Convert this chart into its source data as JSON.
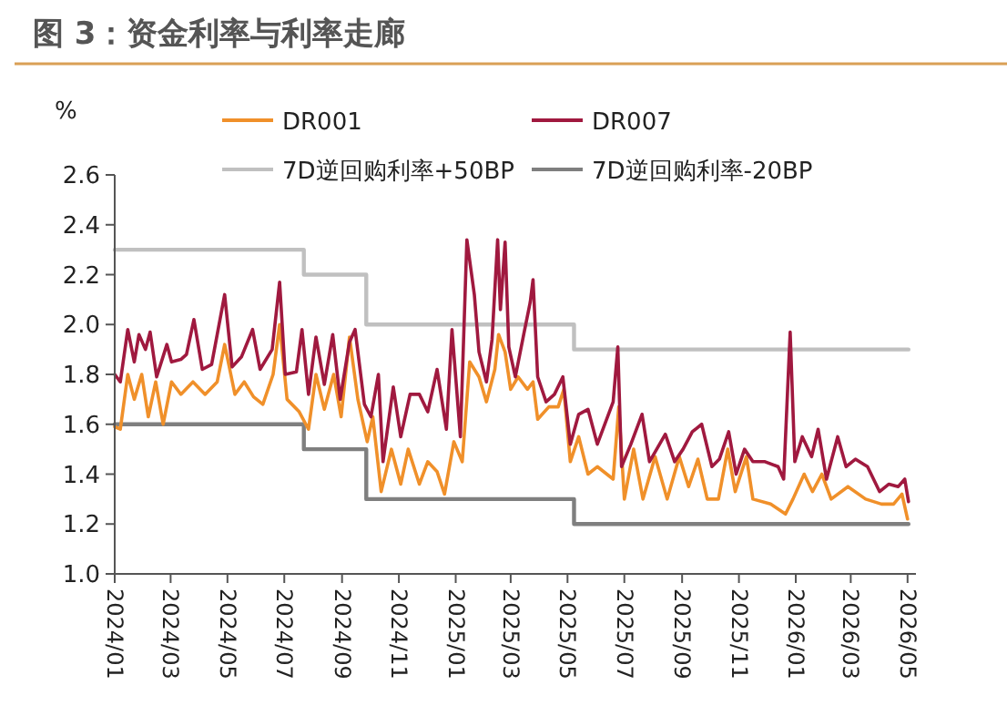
{
  "chart_data": {
    "type": "line",
    "title": "图 3：资金利率与利率走廊",
    "ylabel": "%",
    "legend": "top",
    "grid": false,
    "xlim": [
      "2024-01-01",
      "2026-05-10"
    ],
    "xticks": [
      {
        "value": "2024-01-01",
        "label": "2024/01"
      },
      {
        "value": "2024-03-01",
        "label": "2024/03"
      },
      {
        "value": "2024-05-01",
        "label": "2024/05"
      },
      {
        "value": "2024-07-01",
        "label": "2024/07"
      },
      {
        "value": "2024-09-01",
        "label": "2024/09"
      },
      {
        "value": "2024-11-01",
        "label": "2024/11"
      },
      {
        "value": "2025-01-01",
        "label": "2025/01"
      },
      {
        "value": "2025-03-01",
        "label": "2025/03"
      },
      {
        "value": "2025-05-01",
        "label": "2025/05"
      },
      {
        "value": "2025-07-01",
        "label": "2025/07"
      },
      {
        "value": "2025-09-01",
        "label": "2025/09"
      },
      {
        "value": "2025-11-01",
        "label": "2025/11"
      },
      {
        "value": "2026-01-01",
        "label": "2026/01"
      },
      {
        "value": "2026-03-01",
        "label": "2026/03"
      },
      {
        "value": "2026-05-01",
        "label": "2026/05"
      }
    ],
    "ylim": [
      1.0,
      2.6
    ],
    "yticks": [
      {
        "value": 1.0,
        "label": "1.0"
      },
      {
        "value": 1.2,
        "label": "1.2"
      },
      {
        "value": 1.4,
        "label": "1.4"
      },
      {
        "value": 1.6,
        "label": "1.6"
      },
      {
        "value": 1.8,
        "label": "1.8"
      },
      {
        "value": 2.0,
        "label": "2.0"
      },
      {
        "value": 2.2,
        "label": "2.2"
      },
      {
        "value": 2.4,
        "label": "2.4"
      },
      {
        "value": 2.6,
        "label": "2.6"
      }
    ],
    "series": [
      {
        "name": "DR001",
        "color": "#f0902a",
        "x": [
          "2024-01-01",
          "2024-01-07",
          "2024-01-15",
          "2024-01-22",
          "2024-01-30",
          "2024-02-06",
          "2024-02-14",
          "2024-02-22",
          "2024-03-02",
          "2024-03-12",
          "2024-03-25",
          "2024-04-07",
          "2024-04-20",
          "2024-04-28",
          "2024-05-09",
          "2024-05-19",
          "2024-05-29",
          "2024-06-08",
          "2024-06-19",
          "2024-06-26",
          "2024-07-04",
          "2024-07-17",
          "2024-07-27",
          "2024-08-04",
          "2024-08-13",
          "2024-08-23",
          "2024-08-31",
          "2024-09-09",
          "2024-09-18",
          "2024-09-28",
          "2024-10-04",
          "2024-10-13",
          "2024-10-24",
          "2024-11-03",
          "2024-11-11",
          "2024-11-23",
          "2024-12-02",
          "2024-12-12",
          "2024-12-20",
          "2024-12-30",
          "2025-01-08",
          "2025-01-16",
          "2025-01-26",
          "2025-02-03",
          "2025-02-12",
          "2025-02-16",
          "2025-02-23",
          "2025-03-01",
          "2025-03-09",
          "2025-03-19",
          "2025-03-25",
          "2025-03-30",
          "2025-04-11",
          "2025-04-21",
          "2025-04-27",
          "2025-05-04",
          "2025-05-13",
          "2025-05-23",
          "2025-06-02",
          "2025-06-19",
          "2025-06-25",
          "2025-07-01",
          "2025-07-11",
          "2025-07-21",
          "2025-08-03",
          "2025-08-16",
          "2025-08-29",
          "2025-09-08",
          "2025-09-18",
          "2025-09-28",
          "2025-10-10",
          "2025-10-20",
          "2025-10-28",
          "2025-11-09",
          "2025-11-16",
          "2025-12-05",
          "2025-12-21",
          "2025-12-29",
          "2026-01-10",
          "2026-01-19",
          "2026-01-29",
          "2026-02-08",
          "2026-02-26",
          "2026-03-17",
          "2026-04-03",
          "2026-04-16",
          "2026-04-25",
          "2026-05-01"
        ],
        "values": [
          1.59,
          1.58,
          1.8,
          1.7,
          1.8,
          1.63,
          1.77,
          1.6,
          1.77,
          1.72,
          1.77,
          1.72,
          1.77,
          1.92,
          1.72,
          1.77,
          1.71,
          1.68,
          1.8,
          2.0,
          1.7,
          1.65,
          1.58,
          1.8,
          1.66,
          1.8,
          1.63,
          1.95,
          1.7,
          1.53,
          1.63,
          1.33,
          1.5,
          1.36,
          1.5,
          1.36,
          1.45,
          1.41,
          1.32,
          1.53,
          1.45,
          1.85,
          1.79,
          1.69,
          1.82,
          1.96,
          1.89,
          1.74,
          1.79,
          1.74,
          1.77,
          1.62,
          1.67,
          1.67,
          1.74,
          1.45,
          1.55,
          1.4,
          1.43,
          1.38,
          1.67,
          1.3,
          1.5,
          1.3,
          1.47,
          1.3,
          1.47,
          1.35,
          1.46,
          1.3,
          1.3,
          1.5,
          1.33,
          1.47,
          1.3,
          1.28,
          1.24,
          1.3,
          1.4,
          1.33,
          1.4,
          1.3,
          1.35,
          1.3,
          1.28,
          1.28,
          1.32,
          1.22
        ]
      },
      {
        "name": "DR007",
        "color": "#a0193f",
        "x": [
          "2024-01-01",
          "2024-01-07",
          "2024-01-15",
          "2024-01-22",
          "2024-01-27",
          "2024-02-03",
          "2024-02-08",
          "2024-02-15",
          "2024-02-26",
          "2024-03-02",
          "2024-03-12",
          "2024-03-18",
          "2024-03-26",
          "2024-04-04",
          "2024-04-14",
          "2024-04-28",
          "2024-05-06",
          "2024-05-16",
          "2024-05-28",
          "2024-06-05",
          "2024-06-18",
          "2024-06-26",
          "2024-07-02",
          "2024-07-14",
          "2024-07-20",
          "2024-07-27",
          "2024-08-04",
          "2024-08-13",
          "2024-08-22",
          "2024-08-30",
          "2024-09-09",
          "2024-09-15",
          "2024-09-25",
          "2024-10-02",
          "2024-10-10",
          "2024-10-15",
          "2024-10-26",
          "2024-11-03",
          "2024-11-13",
          "2024-11-23",
          "2024-12-02",
          "2024-12-12",
          "2024-12-22",
          "2024-12-28",
          "2025-01-06",
          "2025-01-13",
          "2025-01-21",
          "2025-01-26",
          "2025-02-03",
          "2025-02-09",
          "2025-02-15",
          "2025-02-18",
          "2025-02-23",
          "2025-02-27",
          "2025-03-06",
          "2025-03-15",
          "2025-03-22",
          "2025-03-25",
          "2025-03-30",
          "2025-04-08",
          "2025-04-17",
          "2025-04-26",
          "2025-05-04",
          "2025-05-13",
          "2025-05-23",
          "2025-06-02",
          "2025-06-19",
          "2025-06-24",
          "2025-06-28",
          "2025-07-08",
          "2025-07-20",
          "2025-07-28",
          "2025-08-14",
          "2025-08-24",
          "2025-09-02",
          "2025-09-12",
          "2025-09-22",
          "2025-10-03",
          "2025-10-11",
          "2025-10-21",
          "2025-10-29",
          "2025-11-07",
          "2025-11-16",
          "2025-11-29",
          "2025-12-13",
          "2025-12-19",
          "2025-12-26",
          "2025-12-31",
          "2026-01-08",
          "2026-01-18",
          "2026-01-25",
          "2026-02-03",
          "2026-02-15",
          "2026-02-24",
          "2026-03-06",
          "2026-03-19",
          "2026-04-01",
          "2026-04-11",
          "2026-04-21",
          "2026-04-28",
          "2026-05-02"
        ],
        "values": [
          1.8,
          1.77,
          1.98,
          1.85,
          1.96,
          1.9,
          1.97,
          1.79,
          1.92,
          1.85,
          1.86,
          1.88,
          2.02,
          1.82,
          1.84,
          2.12,
          1.83,
          1.87,
          1.98,
          1.82,
          1.9,
          2.17,
          1.8,
          1.81,
          1.98,
          1.72,
          1.95,
          1.76,
          1.96,
          1.7,
          1.93,
          1.98,
          1.68,
          1.63,
          1.8,
          1.45,
          1.75,
          1.55,
          1.72,
          1.72,
          1.65,
          1.82,
          1.58,
          1.98,
          1.55,
          2.34,
          2.12,
          1.89,
          1.77,
          1.94,
          2.34,
          2.06,
          2.33,
          1.91,
          1.79,
          1.96,
          2.09,
          2.18,
          1.79,
          1.69,
          1.72,
          1.79,
          1.52,
          1.64,
          1.66,
          1.52,
          1.69,
          1.91,
          1.43,
          1.52,
          1.64,
          1.45,
          1.56,
          1.45,
          1.5,
          1.57,
          1.6,
          1.43,
          1.46,
          1.57,
          1.4,
          1.5,
          1.45,
          1.45,
          1.43,
          1.38,
          1.97,
          1.45,
          1.55,
          1.47,
          1.58,
          1.38,
          1.55,
          1.43,
          1.46,
          1.43,
          1.33,
          1.36,
          1.35,
          1.38,
          1.29
        ]
      },
      {
        "name": "7D逆回购利率+50BP",
        "color": "#c0c0c0",
        "type": "step",
        "x": [
          "2024-01-01",
          "2024-07-22",
          "2024-09-27",
          "2025-05-08",
          "2026-05-02"
        ],
        "values": [
          2.3,
          2.2,
          2.0,
          1.9,
          1.9
        ]
      },
      {
        "name": "7D逆回购利率-20BP",
        "color": "#7f7f7f",
        "type": "step",
        "x": [
          "2024-01-01",
          "2024-07-22",
          "2024-09-27",
          "2025-05-08",
          "2026-05-02"
        ],
        "values": [
          1.6,
          1.5,
          1.3,
          1.2,
          1.2
        ]
      }
    ]
  }
}
